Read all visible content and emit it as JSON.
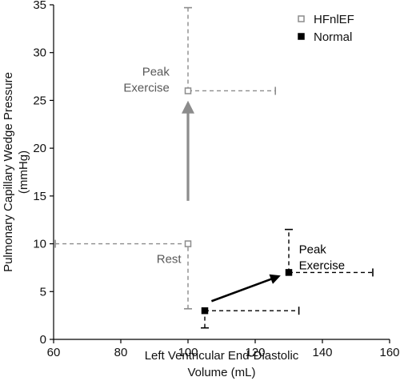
{
  "chart_data": {
    "type": "scatter",
    "xlabel": [
      "Left Ventricular End-Diastolic",
      "Volume (mL)"
    ],
    "ylabel": [
      "Pulmonary Capillary Wedge Pressure",
      "(mmHg)"
    ],
    "xlim": [
      60,
      160
    ],
    "ylim": [
      0,
      35
    ],
    "x_ticks": [
      60,
      80,
      100,
      120,
      140,
      160
    ],
    "y_ticks": [
      0,
      5,
      10,
      15,
      20,
      25,
      30,
      35
    ],
    "legend_position": "top-right",
    "series": [
      {
        "name": "HFnlEF",
        "marker": "open-square",
        "color": "#8c8c8c",
        "points": [
          {
            "state": "rest",
            "x": 100,
            "y": 10,
            "x_err_low": 60.5,
            "x_err_high": 100,
            "y_err_low": 3.2,
            "y_err_high": 10
          },
          {
            "state": "peak",
            "x": 100,
            "y": 26,
            "x_err_low": 100,
            "x_err_high": 126,
            "y_err_low": 26,
            "y_err_high": 34.7
          }
        ],
        "arrow": {
          "from": [
            100,
            14.5
          ],
          "to": [
            100,
            24.7
          ]
        }
      },
      {
        "name": "Normal",
        "marker": "filled-square",
        "color": "#000000",
        "points": [
          {
            "state": "rest",
            "x": 105,
            "y": 3,
            "x_err_low": 105,
            "x_err_high": 133,
            "y_err_low": 1.2,
            "y_err_high": 3
          },
          {
            "state": "peak",
            "x": 130,
            "y": 7,
            "x_err_low": 130,
            "x_err_high": 155,
            "y_err_low": 7,
            "y_err_high": 11.5
          }
        ],
        "arrow": {
          "from": [
            107,
            4
          ],
          "to": [
            127,
            6.6
          ]
        }
      }
    ],
    "annotations": [
      {
        "lines": [
          "Peak",
          "Exercise"
        ],
        "series": "HFnlEF",
        "x": 94.5,
        "y": 27.6,
        "anchor": "end",
        "color": "#595959"
      },
      {
        "lines": [
          "Rest"
        ],
        "series": "HFnlEF",
        "x": 98,
        "y": 8,
        "anchor": "end",
        "color": "#595959"
      },
      {
        "lines": [
          "Peak",
          "Exercise"
        ],
        "series": "Normal",
        "x": 133,
        "y": 9,
        "anchor": "start",
        "color": "#000000"
      }
    ]
  }
}
